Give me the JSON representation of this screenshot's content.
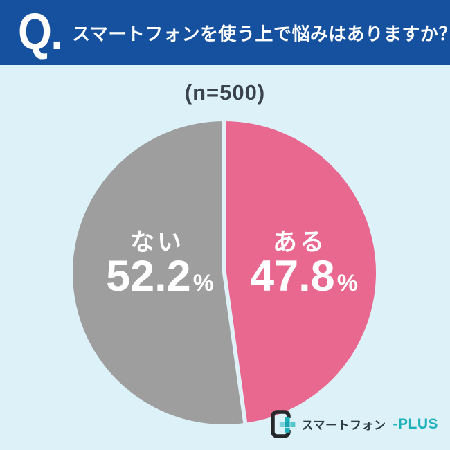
{
  "header": {
    "q_mark": "Q.",
    "question": "スマートフォンを使う上で悩みはありますか？"
  },
  "sample_size_label": "(n=500)",
  "chart_data": {
    "type": "pie",
    "title": "スマートフォンを使う上で悩みはありますか？",
    "sample_size": 500,
    "categories": [
      "ある",
      "ない"
    ],
    "values": [
      47.8,
      52.2
    ],
    "unit": "%",
    "colors": [
      "#e8688f",
      "#9e9e9e"
    ],
    "start_angle_deg": 0,
    "direction": "clockwise",
    "labels_inside": true,
    "legend": "none",
    "divider_color": "#e0f2f8",
    "label_color": "#ffffff"
  },
  "logo": {
    "brand": "スマートフォン",
    "accent": "-PLUS"
  },
  "colors": {
    "page_bg": "#ddf1f8",
    "header_bg": "#16519f",
    "header_text": "#ffffff",
    "sample_text": "#3a424d",
    "label_text": "#ffffff",
    "logo_dark": "#26292b",
    "logo_text": "#2e3b47",
    "logo_teal": "#1db2bb",
    "pie_pink": "#e8688f",
    "pie_gray": "#9e9e9e"
  }
}
